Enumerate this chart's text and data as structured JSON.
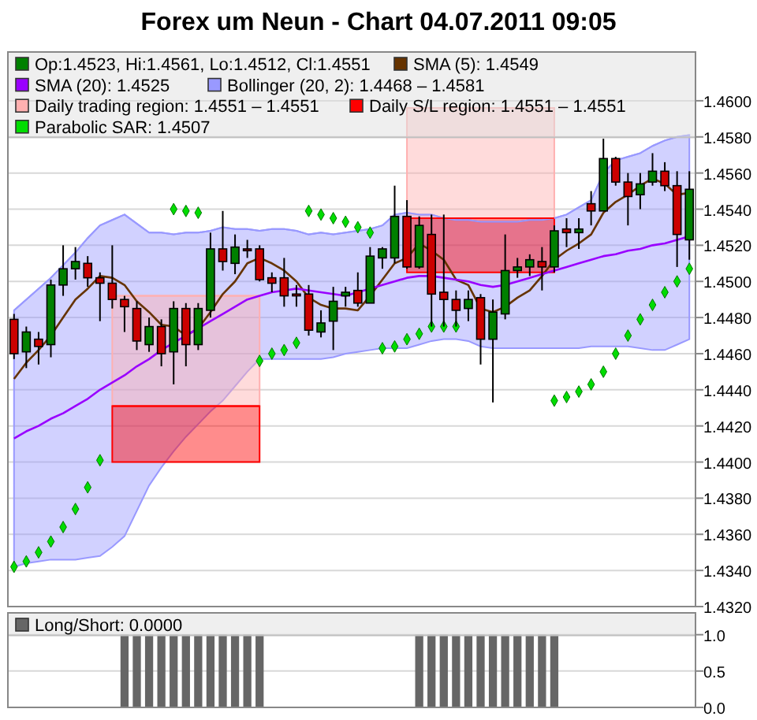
{
  "chart_data": [
    {
      "type": "candlestick",
      "title": "Forex um Neun - Chart 04.07.2011 09:05",
      "categories": [
        null,
        null,
        null,
        null,
        null,
        null,
        null,
        null,
        null,
        null,
        null,
        null,
        null,
        null,
        null,
        null,
        null,
        null,
        null,
        null,
        null,
        null,
        null,
        null,
        null,
        null,
        null,
        null,
        null,
        null,
        null,
        null,
        null,
        null,
        null,
        null,
        null,
        null,
        null,
        null,
        null,
        null,
        null,
        null,
        null,
        null,
        null,
        null,
        null,
        null,
        null,
        null,
        null,
        null,
        null,
        null
      ],
      "ylim": [
        1.432,
        1.4627
      ],
      "yticks": [
        {
          "value": 1.432,
          "label": "1.4320"
        },
        {
          "value": 1.434,
          "label": "1.4340"
        },
        {
          "value": 1.436,
          "label": "1.4360"
        },
        {
          "value": 1.438,
          "label": "1.4380"
        },
        {
          "value": 1.44,
          "label": "1.4400"
        },
        {
          "value": 1.442,
          "label": "1.4420"
        },
        {
          "value": 1.444,
          "label": "1.4440"
        },
        {
          "value": 1.446,
          "label": "1.4460"
        },
        {
          "value": 1.448,
          "label": "1.4480"
        },
        {
          "value": 1.45,
          "label": "1.4500"
        },
        {
          "value": 1.452,
          "label": "1.4520"
        },
        {
          "value": 1.454,
          "label": "1.4540"
        },
        {
          "value": 1.456,
          "label": "1.4560"
        },
        {
          "value": 1.458,
          "label": "1.4580"
        },
        {
          "value": 1.46,
          "label": "1.4600"
        }
      ],
      "grid": "y",
      "legend": "top",
      "tick_labels": "y",
      "series": [
        {
          "type": "candlestick",
          "name": "Op:1.4523, Hi:1.4561, Lo:1.4512, Cl:1.4551",
          "color": "#008000",
          "ohlc": [
            [
              1.4479,
              1.4482,
              1.4457,
              1.446
            ],
            [
              1.4461,
              1.4475,
              1.4452,
              1.4472
            ],
            [
              1.4468,
              1.4472,
              1.4454,
              1.4464
            ],
            [
              1.4465,
              1.4501,
              1.4458,
              1.4498
            ],
            [
              1.4498,
              1.452,
              1.4492,
              1.4507
            ],
            [
              1.4507,
              1.4519,
              1.4501,
              1.4511
            ],
            [
              1.451,
              1.4514,
              1.4497,
              1.4502
            ],
            [
              1.4502,
              1.4505,
              1.4478,
              1.4499
            ],
            [
              1.4499,
              1.452,
              1.4485,
              1.449
            ],
            [
              1.449,
              1.4492,
              1.4472,
              1.4486
            ],
            [
              1.4485,
              1.4489,
              1.4462,
              1.4467
            ],
            [
              1.4465,
              1.448,
              1.4461,
              1.4475
            ],
            [
              1.4475,
              1.4479,
              1.4453,
              1.446
            ],
            [
              1.4461,
              1.4489,
              1.4443,
              1.4485
            ],
            [
              1.4485,
              1.4488,
              1.4453,
              1.4465
            ],
            [
              1.4465,
              1.4488,
              1.4462,
              1.4485
            ],
            [
              1.4484,
              1.4527,
              1.448,
              1.4518
            ],
            [
              1.4518,
              1.4539,
              1.4506,
              1.4511
            ],
            [
              1.451,
              1.4526,
              1.4504,
              1.4519
            ],
            [
              1.4518,
              1.4523,
              1.4513,
              1.4517
            ],
            [
              1.4518,
              1.452,
              1.45,
              1.4501
            ],
            [
              1.4502,
              1.4505,
              1.4494,
              1.4499
            ],
            [
              1.4502,
              1.4513,
              1.4486,
              1.4492
            ],
            [
              1.4493,
              1.4498,
              1.4486,
              1.4492
            ],
            [
              1.4493,
              1.4498,
              1.447,
              1.4473
            ],
            [
              1.4472,
              1.4484,
              1.4469,
              1.4477
            ],
            [
              1.4478,
              1.4497,
              1.4462,
              1.4489
            ],
            [
              1.4492,
              1.4497,
              1.4486,
              1.4494
            ],
            [
              1.4495,
              1.4505,
              1.4486,
              1.4488
            ],
            [
              1.4488,
              1.4519,
              1.4488,
              1.4514
            ],
            [
              1.4513,
              1.4519,
              1.4507,
              1.4518
            ],
            [
              1.4513,
              1.4553,
              1.451,
              1.4536
            ],
            [
              1.4536,
              1.4545,
              1.4507,
              1.4508
            ],
            [
              1.4508,
              1.4536,
              1.4507,
              1.4531
            ],
            [
              1.4526,
              1.4537,
              1.4475,
              1.4493
            ],
            [
              1.4494,
              1.4537,
              1.4475,
              1.449
            ],
            [
              1.449,
              1.4495,
              1.4475,
              1.4484
            ],
            [
              1.4485,
              1.4495,
              1.4478,
              1.449
            ],
            [
              1.4491,
              1.4493,
              1.4454,
              1.4468
            ],
            [
              1.4468,
              1.449,
              1.4433,
              1.4483
            ],
            [
              1.4482,
              1.4526,
              1.4479,
              1.4506
            ],
            [
              1.4506,
              1.4513,
              1.4502,
              1.4508
            ],
            [
              1.4508,
              1.4515,
              1.4503,
              1.4512
            ],
            [
              1.4511,
              1.4519,
              1.4495,
              1.4508
            ],
            [
              1.4508,
              1.4531,
              1.4505,
              1.4528
            ],
            [
              1.4529,
              1.4535,
              1.4519,
              1.4527
            ],
            [
              1.4527,
              1.4535,
              1.4518,
              1.4529
            ],
            [
              1.4543,
              1.455,
              1.4531,
              1.4539
            ],
            [
              1.4539,
              1.4579,
              1.4539,
              1.4568
            ],
            [
              1.4568,
              1.4569,
              1.4553,
              1.4555
            ],
            [
              1.4555,
              1.456,
              1.4531,
              1.4547
            ],
            [
              1.4548,
              1.456,
              1.454,
              1.4554
            ],
            [
              1.4555,
              1.4571,
              1.4553,
              1.4561
            ],
            [
              1.4561,
              1.4566,
              1.455,
              1.4553
            ],
            [
              1.4553,
              1.4561,
              1.4508,
              1.4526
            ],
            [
              1.4523,
              1.4561,
              1.4512,
              1.4551
            ]
          ],
          "colors": [
            "#cc0000",
            "#008000",
            "#cc0000",
            "#008000",
            "#008000",
            "#008000",
            "#cc0000",
            "#cc0000",
            "#cc0000",
            "#cc0000",
            "#cc0000",
            "#008000",
            "#cc0000",
            "#008000",
            "#cc0000",
            "#008000",
            "#008000",
            "#cc0000",
            "#008000",
            "#cc0000",
            "#cc0000",
            "#cc0000",
            "#cc0000",
            "#cc0000",
            "#cc0000",
            "#008000",
            "#008000",
            "#008000",
            "#cc0000",
            "#008000",
            "#008000",
            "#008000",
            "#cc0000",
            "#008000",
            "#cc0000",
            "#cc0000",
            "#cc0000",
            "#008000",
            "#cc0000",
            "#008000",
            "#008000",
            "#008000",
            "#008000",
            "#cc0000",
            "#008000",
            "#cc0000",
            "#008000",
            "#cc0000",
            "#008000",
            "#cc0000",
            "#cc0000",
            "#008000",
            "#008000",
            "#cc0000",
            "#cc0000",
            "#008000"
          ]
        },
        {
          "type": "line",
          "name": "SMA (5): 1.4549",
          "color": "#663300",
          "values": [
            1.4446,
            1.4455,
            1.4462,
            1.447,
            1.448,
            1.449,
            1.4496,
            1.4503,
            1.4502,
            1.4498,
            1.4489,
            1.4483,
            1.4476,
            1.4475,
            1.447,
            1.4474,
            1.4483,
            1.4493,
            1.45,
            1.451,
            1.4513,
            1.451,
            1.4506,
            1.45,
            1.4491,
            1.4487,
            1.4485,
            1.4485,
            1.4484,
            1.4492,
            1.4501,
            1.451,
            1.4513,
            1.4521,
            1.4517,
            1.4512,
            1.4501,
            1.4498,
            1.4485,
            1.4483,
            1.4486,
            1.4491,
            1.4495,
            1.4503,
            1.4512,
            1.4517,
            1.4521,
            1.4526,
            1.4538,
            1.4544,
            1.4548,
            1.4553,
            1.4557,
            1.4554,
            1.4548,
            1.4549
          ]
        },
        {
          "type": "line",
          "name": "SMA (20): 1.4525",
          "color": "#9900ff",
          "values": [
            1.4413,
            1.4417,
            1.442,
            1.4424,
            1.4427,
            1.4431,
            1.4435,
            1.444,
            1.4444,
            1.4448,
            1.4453,
            1.4457,
            1.4462,
            1.4466,
            1.447,
            1.4474,
            1.4478,
            1.4482,
            1.4486,
            1.449,
            1.4492,
            1.4494,
            1.4495,
            1.4496,
            1.4495,
            1.4494,
            1.4493,
            1.4492,
            1.4494,
            1.4496,
            1.4498,
            1.45,
            1.4502,
            1.4503,
            1.4503,
            1.4502,
            1.4501,
            1.45,
            1.4498,
            1.4497,
            1.4498,
            1.45,
            1.4502,
            1.4504,
            1.4506,
            1.4508,
            1.451,
            1.4512,
            1.4514,
            1.4515,
            1.4517,
            1.4518,
            1.452,
            1.4521,
            1.4523,
            1.4525
          ]
        },
        {
          "type": "line",
          "name": "Bollinger (20, 2): 1.4468 – 1.4581",
          "color": "#9999ff",
          "values": [
            1.4484,
            1.449,
            1.4496,
            1.4502,
            1.4509,
            1.4516,
            1.4524,
            1.4531,
            1.4534,
            1.4537,
            1.4532,
            1.4527,
            1.4527,
            1.4526,
            1.4527,
            1.4527,
            1.4528,
            1.453,
            1.4529,
            1.4529,
            1.4528,
            1.4529,
            1.4529,
            1.4528,
            1.4526,
            1.4527,
            1.4526,
            1.4527,
            1.4528,
            1.4529,
            1.4531,
            1.4537,
            1.4538,
            1.4537,
            1.4537,
            1.4535,
            1.4534,
            1.4534,
            1.4533,
            1.4533,
            1.4533,
            1.4533,
            1.4534,
            1.4534,
            1.4535,
            1.4537,
            1.4541,
            1.4545,
            1.456,
            1.4567,
            1.4569,
            1.4571,
            1.4575,
            1.4578,
            1.458,
            1.4581
          ],
          "upper": [
            1.4484,
            1.449,
            1.4496,
            1.4502,
            1.4509,
            1.4516,
            1.4524,
            1.4531,
            1.4534,
            1.4537,
            1.4532,
            1.4527,
            1.4527,
            1.4526,
            1.4527,
            1.4527,
            1.4528,
            1.453,
            1.4529,
            1.4529,
            1.4528,
            1.4529,
            1.4529,
            1.4528,
            1.4526,
            1.4527,
            1.4526,
            1.4527,
            1.4528,
            1.4529,
            1.4531,
            1.4537,
            1.4538,
            1.4537,
            1.4537,
            1.4535,
            1.4534,
            1.4534,
            1.4533,
            1.4533,
            1.4533,
            1.4533,
            1.4534,
            1.4534,
            1.4535,
            1.4537,
            1.4541,
            1.4545,
            1.456,
            1.4567,
            1.4569,
            1.4571,
            1.4575,
            1.4578,
            1.458,
            1.4581
          ],
          "lower": [
            1.4342,
            1.4344,
            1.4345,
            1.4346,
            1.4346,
            1.4346,
            1.4347,
            1.4348,
            1.4353,
            1.4359,
            1.4373,
            1.4387,
            1.4397,
            1.4406,
            1.4414,
            1.4421,
            1.4428,
            1.4434,
            1.4442,
            1.445,
            1.4457,
            1.4457,
            1.4457,
            1.4457,
            1.4457,
            1.4457,
            1.4458,
            1.446,
            1.4461,
            1.4462,
            1.4463,
            1.4463,
            1.4463,
            1.4465,
            1.4467,
            1.4468,
            1.4468,
            1.4467,
            1.4464,
            1.4463,
            1.4463,
            1.4463,
            1.4463,
            1.4463,
            1.4463,
            1.4463,
            1.4463,
            1.4464,
            1.4464,
            1.4464,
            1.4464,
            1.4463,
            1.4462,
            1.4462,
            1.4465,
            1.4468
          ]
        },
        {
          "type": "line",
          "name": "Daily trading region: 1.4551 – 1.4551",
          "color": "#ffb0b0",
          "values": [
            null,
            null,
            null,
            null,
            null,
            null,
            null,
            null,
            1.4492,
            1.4492,
            1.4492,
            1.4492,
            1.4492,
            1.4492,
            1.4492,
            1.4492,
            1.4492,
            1.4492,
            1.4492,
            1.4492,
            1.4492,
            null,
            null,
            null,
            null,
            null,
            null,
            null,
            null,
            null,
            null,
            null,
            1.4596,
            1.4596,
            1.4596,
            1.4596,
            1.4596,
            1.4596,
            1.4596,
            1.4596,
            1.4596,
            1.4596,
            1.4596,
            1.4596,
            1.4596,
            null,
            null,
            null,
            null,
            null,
            null,
            null,
            null,
            null,
            null,
            null
          ],
          "upper": [
            null,
            null,
            null,
            null,
            null,
            null,
            null,
            null,
            1.4492,
            1.4492,
            1.4492,
            1.4492,
            1.4492,
            1.4492,
            1.4492,
            1.4492,
            1.4492,
            1.4492,
            1.4492,
            1.4492,
            1.4492,
            null,
            null,
            null,
            null,
            null,
            null,
            null,
            null,
            null,
            null,
            null,
            1.4596,
            1.4596,
            1.4596,
            1.4596,
            1.4596,
            1.4596,
            1.4596,
            1.4596,
            1.4596,
            1.4596,
            1.4596,
            1.4596,
            1.4596,
            null,
            null,
            null,
            null,
            null,
            null,
            null,
            null,
            null,
            null,
            null
          ],
          "lower": [
            null,
            null,
            null,
            null,
            null,
            null,
            null,
            null,
            1.4431,
            1.4431,
            1.4431,
            1.4431,
            1.4431,
            1.4431,
            1.4431,
            1.4431,
            1.4431,
            1.4431,
            1.4431,
            1.4431,
            1.4431,
            null,
            null,
            null,
            null,
            null,
            null,
            null,
            null,
            null,
            null,
            null,
            1.4535,
            1.4535,
            1.4535,
            1.4535,
            1.4535,
            1.4535,
            1.4535,
            1.4535,
            1.4535,
            1.4535,
            1.4535,
            1.4535,
            1.4535,
            null,
            null,
            null,
            null,
            null,
            null,
            null,
            null,
            null,
            null,
            null
          ]
        },
        {
          "type": "line",
          "name": "Daily S/L region: 1.4551 – 1.4551",
          "color": "#ff0000",
          "values": [
            null,
            null,
            null,
            null,
            null,
            null,
            null,
            null,
            1.4431,
            1.4431,
            1.4431,
            1.4431,
            1.4431,
            1.4431,
            1.4431,
            1.4431,
            1.4431,
            1.4431,
            1.4431,
            1.4431,
            1.4431,
            null,
            null,
            null,
            null,
            null,
            null,
            null,
            null,
            null,
            null,
            null,
            1.4535,
            1.4535,
            1.4535,
            1.4535,
            1.4535,
            1.4535,
            1.4535,
            1.4535,
            1.4535,
            1.4535,
            1.4535,
            1.4535,
            1.4535,
            null,
            null,
            null,
            null,
            null,
            null,
            null,
            null,
            null,
            null,
            null
          ],
          "upper": [
            null,
            null,
            null,
            null,
            null,
            null,
            null,
            null,
            1.4431,
            1.4431,
            1.4431,
            1.4431,
            1.4431,
            1.4431,
            1.4431,
            1.4431,
            1.4431,
            1.4431,
            1.4431,
            1.4431,
            1.4431,
            null,
            null,
            null,
            null,
            null,
            null,
            null,
            null,
            null,
            null,
            null,
            1.4535,
            1.4535,
            1.4535,
            1.4535,
            1.4535,
            1.4535,
            1.4535,
            1.4535,
            1.4535,
            1.4535,
            1.4535,
            1.4535,
            1.4535,
            null,
            null,
            null,
            null,
            null,
            null,
            null,
            null,
            null,
            null,
            null
          ],
          "lower": [
            null,
            null,
            null,
            null,
            null,
            null,
            null,
            null,
            1.44,
            1.44,
            1.44,
            1.44,
            1.44,
            1.44,
            1.44,
            1.44,
            1.44,
            1.44,
            1.44,
            1.44,
            1.44,
            null,
            null,
            null,
            null,
            null,
            null,
            null,
            null,
            null,
            null,
            null,
            1.4505,
            1.4505,
            1.4505,
            1.4505,
            1.4505,
            1.4505,
            1.4505,
            1.4505,
            1.4505,
            1.4505,
            1.4505,
            1.4505,
            1.4505,
            null,
            null,
            null,
            null,
            null,
            null,
            null,
            null,
            null,
            null,
            null
          ]
        },
        {
          "type": "scatter",
          "name": "Parabolic SAR: 1.4507",
          "color": "#00dd00",
          "marker": "diamond",
          "values": [
            1.4342,
            1.4345,
            1.435,
            1.4356,
            1.4364,
            1.4374,
            1.4386,
            1.4401,
            null,
            null,
            null,
            null,
            null,
            1.454,
            1.4539,
            1.4538,
            null,
            null,
            null,
            null,
            1.4456,
            1.446,
            1.4462,
            1.4466,
            1.4539,
            1.4537,
            1.4535,
            1.4533,
            1.453,
            1.4527,
            1.4463,
            1.4464,
            1.4468,
            1.4471,
            1.4475,
            1.4475,
            1.4475,
            null,
            null,
            null,
            null,
            null,
            null,
            null,
            1.4434,
            1.4436,
            1.4439,
            1.4443,
            1.445,
            1.446,
            1.447,
            1.4479,
            1.4487,
            1.4494,
            1.45,
            1.4507
          ]
        }
      ]
    },
    {
      "type": "bar",
      "categories": [
        null,
        null,
        null,
        null,
        null,
        null,
        null,
        null,
        null,
        null,
        null,
        null,
        null,
        null,
        null,
        null,
        null,
        null,
        null,
        null,
        null,
        null,
        null,
        null,
        null,
        null,
        null,
        null,
        null,
        null,
        null,
        null,
        null,
        null,
        null,
        null,
        null,
        null,
        null,
        null,
        null,
        null,
        null,
        null,
        null,
        null,
        null,
        null,
        null,
        null,
        null,
        null,
        null,
        null,
        null,
        null
      ],
      "ylim": [
        0,
        1.3
      ],
      "yticks": [
        {
          "value": 0,
          "label": "0.0"
        },
        {
          "value": 0.5,
          "label": "0.5"
        },
        {
          "value": 1,
          "label": "1.0"
        }
      ],
      "grid": "y",
      "legend": "top",
      "tick_labels": "y",
      "series": [
        {
          "type": "bar",
          "name": "Long/Short: 0.0000",
          "color": "#666666",
          "values": [
            0,
            0,
            0,
            0,
            0,
            0,
            0,
            0,
            0,
            1,
            1,
            1,
            1,
            1,
            1,
            1,
            1,
            1,
            1,
            1,
            1,
            0,
            0,
            0,
            0,
            0,
            0,
            0,
            0,
            0,
            0,
            0,
            0,
            1,
            1,
            1,
            1,
            1,
            1,
            1,
            1,
            1,
            1,
            1,
            1,
            0,
            0,
            0,
            0,
            0,
            0,
            0,
            0,
            0,
            0,
            0
          ]
        }
      ]
    }
  ]
}
